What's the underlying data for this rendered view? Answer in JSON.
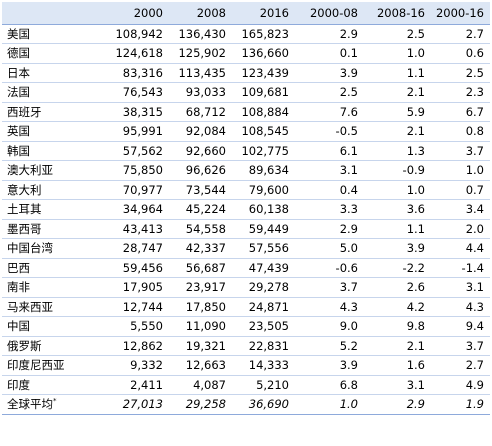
{
  "table": {
    "headers": [
      "",
      "2000",
      "2008",
      "2016",
      "2000-08",
      "2008-16",
      "2000-16"
    ],
    "rows": [
      [
        "美国",
        "108,942",
        "136,430",
        "165,823",
        "2.9",
        "2.5",
        "2.7"
      ],
      [
        "德国",
        "124,618",
        "125,902",
        "136,660",
        "0.1",
        "1.0",
        "0.6"
      ],
      [
        "日本",
        "83,316",
        "113,435",
        "123,439",
        "3.9",
        "1.1",
        "2.5"
      ],
      [
        "法国",
        "76,543",
        "93,033",
        "109,681",
        "2.5",
        "2.1",
        "2.3"
      ],
      [
        "西班牙",
        "38,315",
        "68,712",
        "108,884",
        "7.6",
        "5.9",
        "6.7"
      ],
      [
        "英国",
        "95,991",
        "92,084",
        "108,545",
        "-0.5",
        "2.1",
        "0.8"
      ],
      [
        "韩国",
        "57,562",
        "92,660",
        "102,775",
        "6.1",
        "1.3",
        "3.7"
      ],
      [
        "澳大利亚",
        "75,850",
        "96,626",
        "89,634",
        "3.1",
        "-0.9",
        "1.0"
      ],
      [
        "意大利",
        "70,977",
        "73,544",
        "79,600",
        "0.4",
        "1.0",
        "0.7"
      ],
      [
        "土耳其",
        "34,964",
        "45,224",
        "60,138",
        "3.3",
        "3.6",
        "3.4"
      ],
      [
        "墨西哥",
        "43,413",
        "54,558",
        "59,449",
        "2.9",
        "1.1",
        "2.0"
      ],
      [
        "中国台湾",
        "28,747",
        "42,337",
        "57,556",
        "5.0",
        "3.9",
        "4.4"
      ],
      [
        "巴西",
        "59,456",
        "56,687",
        "47,439",
        "-0.6",
        "-2.2",
        "-1.4"
      ],
      [
        "南非",
        "17,905",
        "23,917",
        "29,278",
        "3.7",
        "2.6",
        "3.1"
      ],
      [
        "马来西亚",
        "12,744",
        "17,850",
        "24,871",
        "4.3",
        "4.2",
        "4.3"
      ],
      [
        "中国",
        "5,550",
        "11,090",
        "23,505",
        "9.0",
        "9.8",
        "9.4"
      ],
      [
        "俄罗斯",
        "12,862",
        "19,321",
        "22,831",
        "5.2",
        "2.1",
        "3.7"
      ],
      [
        "印度尼西亚",
        "9,332",
        "12,663",
        "14,333",
        "3.9",
        "1.6",
        "2.7"
      ],
      [
        "印度",
        "2,411",
        "4,087",
        "5,210",
        "6.8",
        "3.1",
        "4.9"
      ]
    ],
    "total": {
      "name": "全球平均",
      "footnote_mark": "*",
      "values": [
        "27,013",
        "29,258",
        "36,690",
        "1.0",
        "2.9",
        "1.9"
      ]
    }
  }
}
